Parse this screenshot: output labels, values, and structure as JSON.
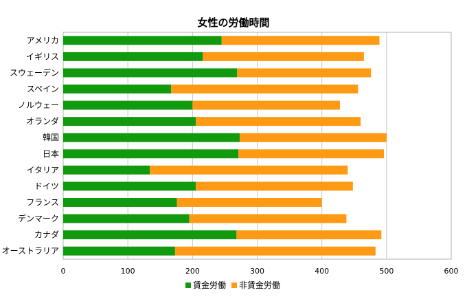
{
  "chart_data": {
    "type": "bar",
    "orientation": "horizontal",
    "stacked": true,
    "title": "女性の労働時間",
    "xlabel": "",
    "ylabel": "",
    "xlim": [
      0,
      600
    ],
    "xticks": [
      0,
      100,
      200,
      300,
      400,
      500,
      600
    ],
    "grid": true,
    "legend_position": "bottom",
    "categories": [
      "アメリカ",
      "イギリス",
      "スウェーデン",
      "スペイン",
      "ノルウェー",
      "オランダ",
      "韓国",
      "日本",
      "イタリア",
      "ドイツ",
      "フランス",
      "デンマーク",
      "カナダ",
      "オーストラリア"
    ],
    "series": [
      {
        "name": "賃金労働",
        "color": "#119a0e",
        "values": [
          245,
          216,
          269,
          167,
          200,
          205,
          273,
          271,
          134,
          205,
          176,
          195,
          268,
          173
        ]
      },
      {
        "name": "非賃金労働",
        "color": "#ff9a14",
        "values": [
          244,
          249,
          207,
          289,
          228,
          255,
          227,
          225,
          306,
          243,
          224,
          243,
          224,
          310
        ]
      }
    ]
  }
}
